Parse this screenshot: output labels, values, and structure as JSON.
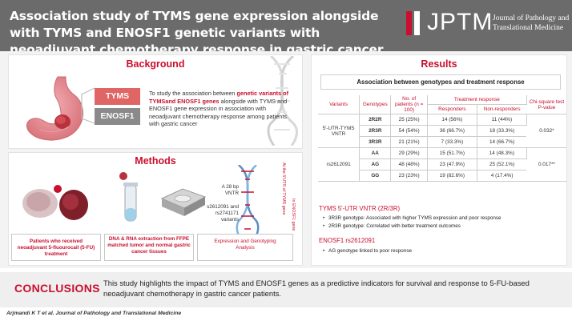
{
  "header": {
    "title": "Association study of TYMS gene expression alongside with TYMS and ENOSF1 genetic variants with neoadjuvant chemotherapy response in gastric cancer",
    "logo_text": "JPTM",
    "journal_line1": "Journal of Pathology and",
    "journal_line2": "Translational Medicine"
  },
  "background": {
    "title": "Background",
    "genes": [
      "TYMS",
      "ENOSF1"
    ],
    "text_pre": "To study the association between ",
    "text_bold": "genetic variants of TYMSand ENOSF1 genes",
    "text_post": " alongside with TYMS and ENOSF1 gene expression in association with neoadjuvant chemotherapy response among patients with gastric cancer"
  },
  "methods": {
    "title": "Methods",
    "steps": [
      "Patients who received neoadjuvant 5-fluourocail (5-FU) treatment",
      "DNA & RNA extraction from FFPE matched tumor and normal gastric cancer tissues",
      "Expression and Genotyping Analysis"
    ],
    "dna_labels": [
      "A 28 bp VNTR",
      "s2612091 and rs2741171 variants"
    ],
    "dna_region_labels": [
      "At the 5'UTR of TYMS gene",
      "In ENOSF1 gene"
    ]
  },
  "results": {
    "title": "Results",
    "table_title": "Association between genotypes and treatment response",
    "headers": {
      "variants": "Variants",
      "genotypes": "Genotypes",
      "patients": "No. of patients (n = 100)",
      "treatment": "Treatment response",
      "responders": "Responders",
      "non_responders": "Non-responders",
      "chi": "Chi-square test P-value"
    },
    "groups": [
      {
        "variant": "5'-UTR-TYMS VNTR",
        "p_value": "0.032*",
        "rows": [
          {
            "genotype": "2R2R",
            "patients": "25 (25%)",
            "responders": "14 (56%)",
            "non_responders": "11 (44%)"
          },
          {
            "genotype": "2R3R",
            "patients": "54 (54%)",
            "responders": "36 (66.7%)",
            "non_responders": "18 (33.3%)"
          },
          {
            "genotype": "3R3R",
            "patients": "21 (21%)",
            "responders": "7 (33.3%)",
            "non_responders": "14 (66.7%)"
          }
        ]
      },
      {
        "variant": "rs2612091",
        "p_value": "0.017**",
        "rows": [
          {
            "genotype": "AA",
            "patients": "29 (29%)",
            "responders": "15 (51.7%)",
            "non_responders": "14 (48.3%)"
          },
          {
            "genotype": "AG",
            "patients": "48 (48%)",
            "responders": "23 (47.9%)",
            "non_responders": "25 (52.1%)"
          },
          {
            "genotype": "GG",
            "patients": "23 (23%)",
            "responders": "19 (82.6%)",
            "non_responders": "4 (17.4%)"
          }
        ]
      }
    ],
    "vntr_title": "TYMS 5'-UTR VNTR (2R/3R)",
    "vntr_bullets": [
      "3R3R genotype: Associated with higher TYMS expression and poor response",
      "2R3R genotype: Correlated with better treatment outcomes"
    ],
    "enosf1_title": "ENOSF1 rs2612091",
    "enosf1_bullets": [
      "AG genotype linked to poor response"
    ]
  },
  "conclusions": {
    "title": "CONCLUSIONS",
    "text": "This study highlights the impact of TYMS and ENOSF1 genes as a predictive indicators for survival and response to 5-FU-based neoadjuvant chemotherapy in gastric cancer patients."
  },
  "footer": "Arjmandi K T et al. Journal of Pathology and Translational Medicine",
  "colors": {
    "accent": "#c8102e",
    "header_bg": "#6b6b6b",
    "tyms_tag": "#e06666",
    "enosf1_tag": "#8a8a8a"
  }
}
